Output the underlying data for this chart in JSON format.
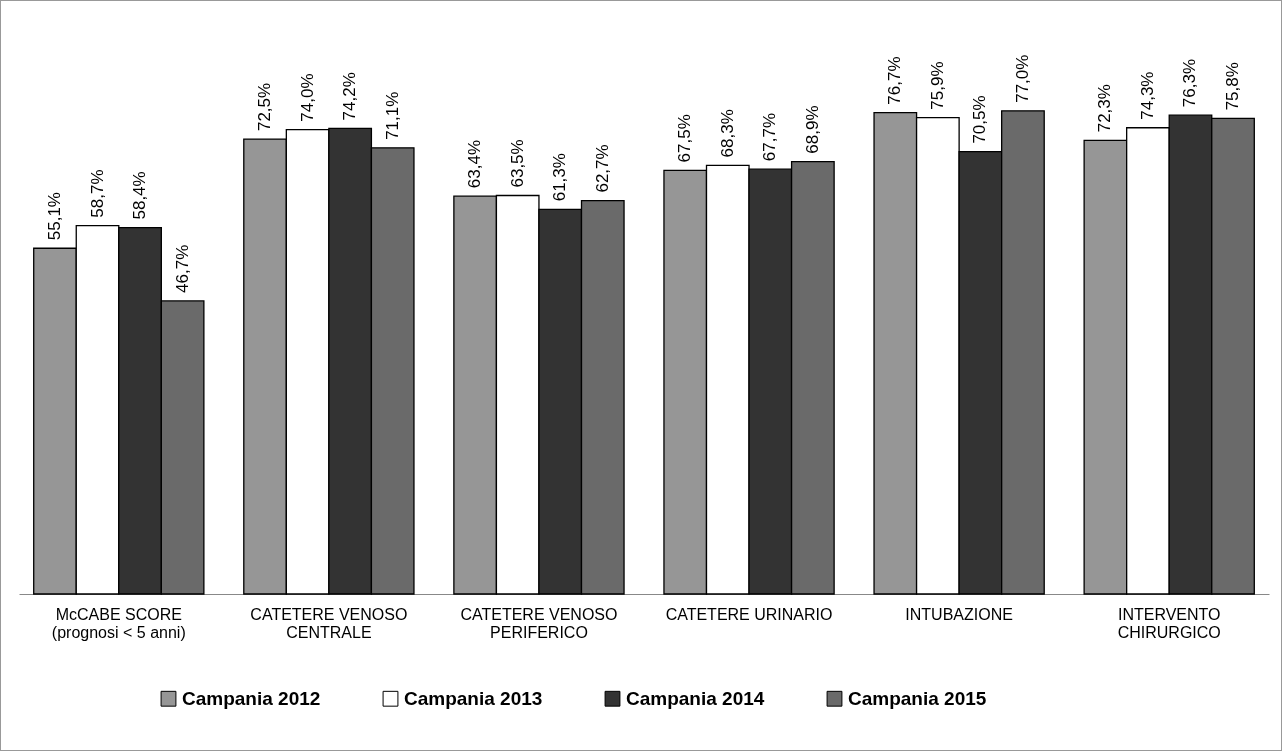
{
  "chart_data": {
    "type": "bar",
    "categories": [
      "McCABE SCORE\n(prognosi < 5 anni)",
      "CATETERE VENOSO\nCENTRALE",
      "CATETERE VENOSO\nPERIFERICO",
      "CATETERE URINARIO",
      "INTUBAZIONE",
      "INTERVENTO\nCHIRURGICO"
    ],
    "series": [
      {
        "name": "Campania 2012",
        "color": "#969696",
        "values": [
          55.1,
          72.5,
          63.4,
          67.5,
          76.7,
          72.3
        ],
        "value_labels": [
          "55,1%",
          "72,5%",
          "63,4%",
          "67,5%",
          "76,7%",
          "72,3%"
        ]
      },
      {
        "name": "Campania 2013",
        "color": "#ffffff",
        "values": [
          58.7,
          74.0,
          63.5,
          68.3,
          75.9,
          74.3
        ],
        "value_labels": [
          "58,7%",
          "74,0%",
          "63,5%",
          "68,3%",
          "75,9%",
          "74,3%"
        ]
      },
      {
        "name": "Campania 2014",
        "color": "#333333",
        "values": [
          58.4,
          74.2,
          61.3,
          67.7,
          70.5,
          76.3
        ],
        "value_labels": [
          "58,4%",
          "74,2%",
          "61,3%",
          "67,7%",
          "70,5%",
          "76,3%"
        ]
      },
      {
        "name": "Campania 2015",
        "color": "#6a6a6a",
        "values": [
          46.7,
          71.1,
          62.7,
          68.9,
          77.0,
          75.8
        ],
        "value_labels": [
          "46,7%",
          "71,1%",
          "62,7%",
          "68,9%",
          "77,0%",
          "75,8%"
        ]
      }
    ],
    "legend": "bottom"
  }
}
